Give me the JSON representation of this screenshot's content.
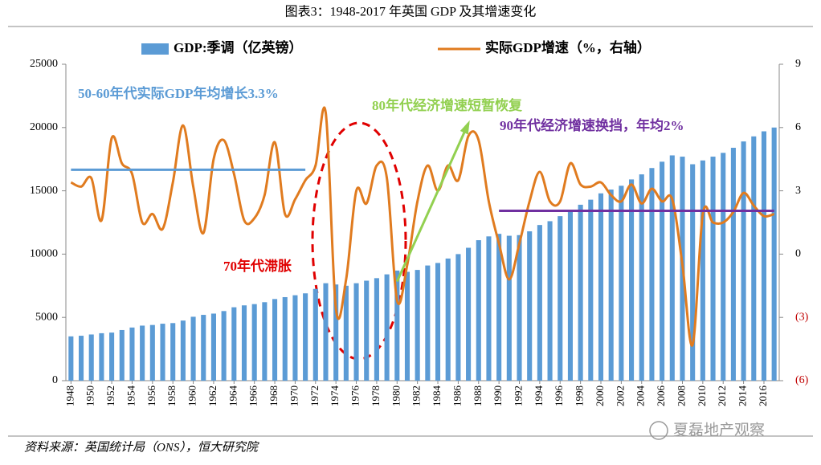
{
  "chart_data": {
    "type": "bar-line",
    "title": "图表3：1948-2017 年英国 GDP 及其增速变化",
    "source": "资料来源：英国统计局（ONS），恒大研究院",
    "watermark": "夏磊地产观察",
    "x": [
      1948,
      1949,
      1950,
      1951,
      1952,
      1953,
      1954,
      1955,
      1956,
      1957,
      1958,
      1959,
      1960,
      1961,
      1962,
      1963,
      1964,
      1965,
      1966,
      1967,
      1968,
      1969,
      1970,
      1971,
      1972,
      1973,
      1974,
      1975,
      1976,
      1977,
      1978,
      1979,
      1980,
      1981,
      1982,
      1983,
      1984,
      1985,
      1986,
      1987,
      1988,
      1989,
      1990,
      1991,
      1992,
      1993,
      1994,
      1995,
      1996,
      1997,
      1998,
      1999,
      2000,
      2001,
      2002,
      2003,
      2004,
      2005,
      2006,
      2007,
      2008,
      2009,
      2010,
      2011,
      2012,
      2013,
      2014,
      2015,
      2016,
      2017
    ],
    "xlim": [
      1947.5,
      2017.5
    ],
    "xticks": [
      1948,
      1950,
      1952,
      1954,
      1956,
      1958,
      1960,
      1962,
      1964,
      1966,
      1968,
      1970,
      1972,
      1974,
      1976,
      1978,
      1980,
      1982,
      1984,
      1986,
      1988,
      1990,
      1992,
      1994,
      1996,
      1998,
      2000,
      2002,
      2004,
      2006,
      2008,
      2010,
      2012,
      2014,
      2016
    ],
    "ylim": [
      0,
      25000
    ],
    "yticks": [
      0,
      5000,
      10000,
      15000,
      20000,
      25000
    ],
    "y2lim": [
      -6,
      9
    ],
    "y2ticks": [
      9,
      6,
      3,
      0,
      {
        "value": -3,
        "label": "(3)"
      },
      {
        "value": -6,
        "label": "(6)"
      }
    ],
    "negative_tick_color": "#c00000",
    "series": [
      {
        "name": "GDP:季调（亿英镑）",
        "type": "bar",
        "color": "#5b9bd5",
        "values": [
          3500,
          3550,
          3650,
          3750,
          3800,
          4000,
          4200,
          4350,
          4400,
          4500,
          4550,
          4750,
          5050,
          5200,
          5300,
          5500,
          5800,
          5950,
          6050,
          6200,
          6450,
          6600,
          6750,
          6900,
          7250,
          7700,
          7600,
          7500,
          7700,
          7900,
          8100,
          8400,
          8700,
          8600,
          8750,
          9100,
          9300,
          9650,
          10000,
          10500,
          11100,
          11400,
          11600,
          11450,
          11500,
          11800,
          12300,
          12600,
          13000,
          13400,
          13900,
          14300,
          14800,
          15100,
          15400,
          15900,
          16300,
          16800,
          17300,
          17800,
          17700,
          17100,
          17400,
          17700,
          18000,
          18400,
          18900,
          19300,
          19700,
          20000
        ]
      },
      {
        "name": "实际GDP增速（%，右轴）",
        "type": "line",
        "axis": "y2",
        "color": "#e07b1f",
        "values": [
          3.4,
          3.2,
          3.6,
          1.6,
          5.5,
          4.3,
          3.8,
          1.5,
          1.9,
          1.2,
          3.4,
          6.1,
          3.2,
          1.0,
          4.5,
          5.4,
          3.8,
          1.6,
          1.7,
          2.8,
          5.3,
          1.9,
          2.6,
          3.5,
          4.2,
          6.7,
          -2.6,
          -1.2,
          3.0,
          2.4,
          4.2,
          3.6,
          -2.2,
          -0.5,
          2.5,
          4.2,
          3.0,
          4.2,
          3.5,
          5.6,
          5.4,
          2.5,
          0.5,
          -1.2,
          0.5,
          2.5,
          3.9,
          2.5,
          2.5,
          4.3,
          3.3,
          3.2,
          3.4,
          2.8,
          2.5,
          3.3,
          2.4,
          3.1,
          2.5,
          2.6,
          -0.5,
          -4.3,
          1.9,
          1.5,
          1.5,
          2.0,
          2.9,
          2.3,
          1.8,
          1.9
        ]
      }
    ],
    "annotations": [
      {
        "text": "50-60年代实际GDP年均增长3.3%",
        "color": "#5b9bd5",
        "from": 1948,
        "to": 1971,
        "value": 4.0
      },
      {
        "text": "70年代滞胀",
        "color": "#e00000"
      },
      {
        "text": "80年代经济增速短暂恢复",
        "color": "#92d050",
        "from": 1980,
        "to": 1987,
        "from_value": -1.3,
        "to_value": 6.2
      },
      {
        "text": "90年代经济增速换挡，年均2%",
        "color": "#7030a0",
        "from": 1990,
        "to": 2017,
        "value": 2.05
      }
    ]
  }
}
